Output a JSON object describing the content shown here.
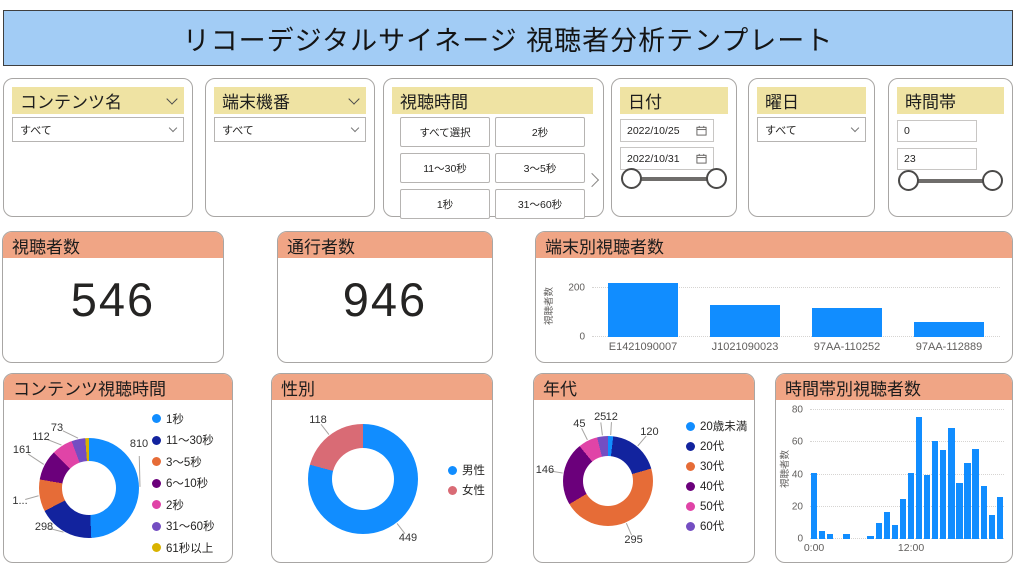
{
  "title": "リコーデジタルサイネージ 視聴者分析テンプレート",
  "filters": {
    "content_name": {
      "label": "コンテンツ名",
      "value": "すべて"
    },
    "terminal_id": {
      "label": "端末機番",
      "value": "すべて"
    },
    "view_time": {
      "label": "視聴時間",
      "buttons": [
        "すべて選択",
        "2秒",
        "11～30秒",
        "3～5秒",
        "1秒",
        "31～60秒"
      ]
    },
    "date": {
      "label": "日付",
      "from": "2022/10/25",
      "to": "2022/10/31"
    },
    "weekday": {
      "label": "曜日",
      "value": "すべて"
    },
    "hour": {
      "label": "時間帯",
      "from": "0",
      "to": "23"
    }
  },
  "kpis": [
    {
      "label": "視聴者数",
      "value": "546"
    },
    {
      "label": "通行者数",
      "value": "946"
    }
  ],
  "chart_data": [
    {
      "id": "terminal_viewers",
      "type": "bar",
      "title": "端末別視聴者数",
      "ylabel": "視聴者数",
      "xlabel": "",
      "categories": [
        "E1421090007",
        "J1021090023",
        "97AA-110252",
        "97AA-112889"
      ],
      "values": [
        220,
        130,
        120,
        62
      ],
      "yticks": [
        0,
        200
      ],
      "ylim": [
        0,
        250
      ],
      "grid": "dotted",
      "bar_color": "#118DFF"
    },
    {
      "id": "content_view_time",
      "type": "donut",
      "title": "コンテンツ視聴時間",
      "legend": [
        "1秒",
        "11～30秒",
        "3～5秒",
        "6～10秒",
        "2秒",
        "31～60秒",
        "61秒以上"
      ],
      "values": [
        810,
        298,
        170,
        161,
        112,
        73,
        20
      ],
      "labels": [
        "810",
        "298",
        "1...",
        "161",
        "112",
        "73",
        ""
      ],
      "colors": [
        "#118DFF",
        "#12239E",
        "#E66C37",
        "#6B007B",
        "#E044A7",
        "#744EC2",
        "#D9B300"
      ],
      "legend_position": "right"
    },
    {
      "id": "gender",
      "type": "donut",
      "title": "性別",
      "legend": [
        "男性",
        "女性"
      ],
      "values": [
        449,
        118
      ],
      "labels": [
        "449",
        "118"
      ],
      "colors": [
        "#118DFF",
        "#D96B75"
      ],
      "legend_position": "right"
    },
    {
      "id": "age_group",
      "type": "donut",
      "title": "年代",
      "legend": [
        "20歳未満",
        "20代",
        "30代",
        "40代",
        "50代",
        "60代"
      ],
      "values": [
        12,
        120,
        295,
        146,
        45,
        25
      ],
      "labels": [
        "12",
        "120",
        "295",
        "146",
        "45",
        "25"
      ],
      "colors": [
        "#118DFF",
        "#12239E",
        "#E66C37",
        "#6B007B",
        "#E044A7",
        "#744EC2"
      ],
      "legend_position": "right"
    },
    {
      "id": "hourly_viewers",
      "type": "bar",
      "title": "時間帯別視聴者数",
      "ylabel": "視聴者数",
      "xlabel": "",
      "x": [
        0,
        1,
        2,
        3,
        4,
        5,
        6,
        7,
        8,
        9,
        10,
        11,
        12,
        13,
        14,
        15,
        16,
        17,
        18,
        19,
        20,
        21,
        22,
        23
      ],
      "values": [
        41,
        5,
        3,
        0,
        3,
        0,
        0,
        2,
        10,
        17,
        9,
        25,
        41,
        76,
        40,
        61,
        55,
        69,
        35,
        47,
        56,
        33,
        15,
        26
      ],
      "yticks": [
        0,
        20,
        40,
        60,
        80
      ],
      "ylim": [
        0,
        85
      ],
      "grid": "dotted",
      "x_ticks": [
        {
          "index": 0,
          "label": "0:00"
        },
        {
          "index": 12,
          "label": "12:00"
        }
      ],
      "bar_color": "#118DFF"
    }
  ],
  "colors": {
    "title_bg": "#A2CCF5",
    "slicer_header_bg": "#EFE3A3",
    "visual_header_bg": "#F0A585",
    "bar_blue": "#118DFF"
  }
}
